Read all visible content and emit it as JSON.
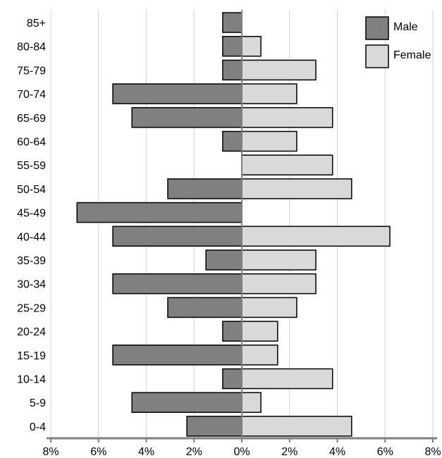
{
  "chart_data": {
    "type": "bar",
    "orientation": "horizontal",
    "style": "population-pyramid",
    "title": "",
    "xlabel": "",
    "ylabel": "",
    "categories": [
      "0-4",
      "5-9",
      "10-14",
      "15-19",
      "20-24",
      "25-29",
      "30-34",
      "35-39",
      "40-44",
      "45-49",
      "50-54",
      "55-59",
      "60-64",
      "65-69",
      "70-74",
      "75-79",
      "80-84",
      "85+"
    ],
    "series": [
      {
        "name": "Male",
        "color": "#808080",
        "values": [
          2.3,
          4.6,
          0.8,
          5.4,
          0.8,
          3.1,
          5.4,
          1.5,
          5.4,
          6.9,
          3.1,
          0.0,
          0.8,
          4.6,
          5.4,
          0.8,
          0.8,
          0.8
        ]
      },
      {
        "name": "Female",
        "color": "#d9d9d9",
        "values": [
          4.6,
          0.8,
          3.8,
          1.5,
          1.5,
          2.3,
          3.1,
          3.1,
          6.2,
          0.0,
          4.6,
          3.8,
          2.3,
          3.8,
          2.3,
          3.1,
          0.8,
          0.0
        ]
      }
    ],
    "xlim": [
      -8,
      8
    ],
    "xticks": [
      -8,
      -6,
      -4,
      -2,
      0,
      2,
      4,
      6,
      8
    ],
    "xtick_labels": [
      "8%",
      "6%",
      "4%",
      "2%",
      "0%",
      "2%",
      "4%",
      "6%",
      "8%"
    ],
    "grid": "vertical",
    "legend": "top-right"
  }
}
